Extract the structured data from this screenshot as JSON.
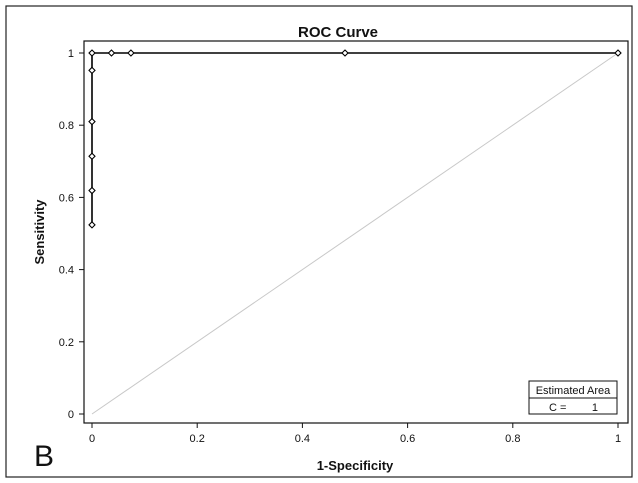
{
  "panel_label": "B",
  "chart_data": {
    "type": "line",
    "title": "ROC Curve",
    "xlabel": "1-Specificity",
    "ylabel": "Sensitivity",
    "xlim": [
      0,
      1
    ],
    "ylim": [
      0,
      1
    ],
    "xticks": [
      0,
      0.2,
      0.4,
      0.6,
      0.8,
      1
    ],
    "xtick_labels": [
      "0",
      "0.2",
      "0.4",
      "0.6",
      "0.8",
      "1"
    ],
    "yticks": [
      0,
      0.2,
      0.4,
      0.6,
      0.8,
      1
    ],
    "ytick_labels": [
      "0",
      "0.2",
      "0.4",
      "0.6",
      "0.8",
      "1"
    ],
    "grid": false,
    "series": [
      {
        "color": "#000000",
        "markers": "open-diamond",
        "x": [
          0,
          0,
          0,
          0,
          0,
          0,
          0.037,
          0.074,
          0.481,
          1
        ],
        "y": [
          0.524,
          0.619,
          0.714,
          0.81,
          0.952,
          1,
          1,
          1,
          1,
          1
        ]
      }
    ],
    "reference_line": {
      "x": [
        0,
        1
      ],
      "y": [
        0,
        1
      ],
      "color": "#c8c8c8"
    },
    "inset": {
      "title": "Estimated Area",
      "label": "C =",
      "value": "1",
      "position": "bottom-right"
    }
  }
}
